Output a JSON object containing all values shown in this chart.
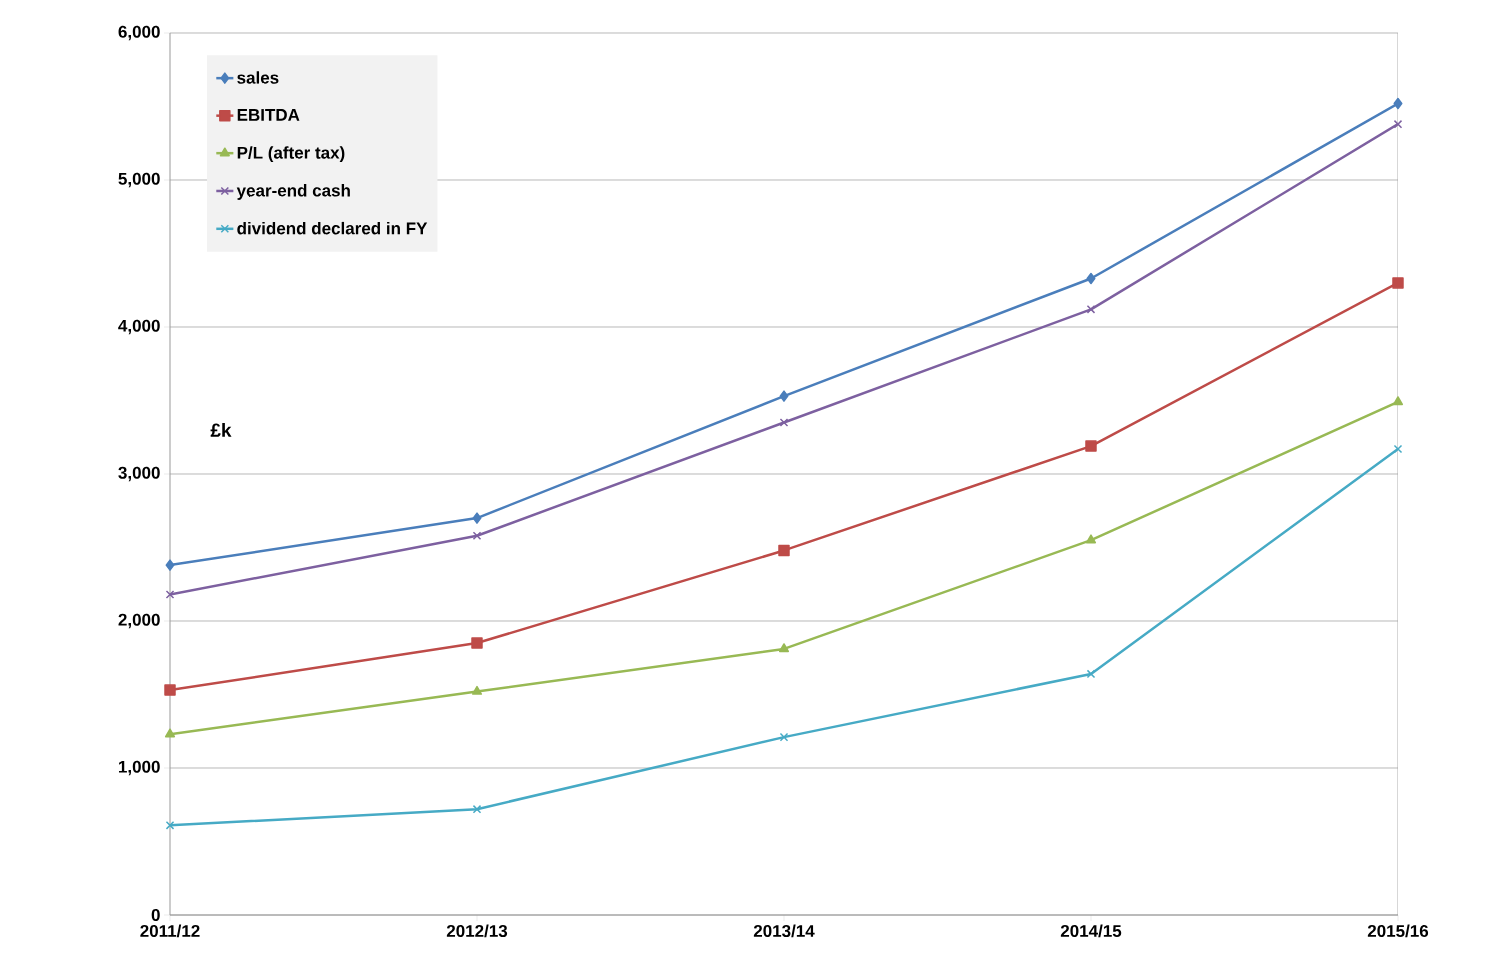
{
  "chart_data": {
    "type": "line",
    "ylabel": "£k",
    "categories": [
      "2011/12",
      "2012/13",
      "2013/14",
      "2014/15",
      "2015/16"
    ],
    "ylim": [
      0,
      6000
    ],
    "yticks": [
      {
        "value": 0,
        "label": "0"
      },
      {
        "value": 1000,
        "label": "1,000"
      },
      {
        "value": 2000,
        "label": "2,000"
      },
      {
        "value": 3000,
        "label": "3,000"
      },
      {
        "value": 4000,
        "label": "4,000"
      },
      {
        "value": 5000,
        "label": "5,000"
      },
      {
        "value": 6000,
        "label": "6,000"
      }
    ],
    "grid": "y",
    "legend": "top left",
    "line_style": "solid",
    "series": [
      {
        "name": "sales",
        "color": "#4a7ebb",
        "marker": "diamond",
        "values": [
          2380,
          2700,
          3530,
          4330,
          5520
        ]
      },
      {
        "name": "EBITDA",
        "color": "#be4b48",
        "marker": "square",
        "values": [
          1530,
          1850,
          2480,
          3190,
          4300
        ]
      },
      {
        "name": "P/L (after tax)",
        "color": "#98b954",
        "marker": "triangle",
        "values": [
          1230,
          1520,
          1810,
          2550,
          3490
        ]
      },
      {
        "name": "year-end cash",
        "color": "#7d60a0",
        "marker": "cross",
        "values": [
          2180,
          2580,
          3350,
          4120,
          5380
        ]
      },
      {
        "name": "dividend declared in FY",
        "color": "#46aac5",
        "marker": "cross",
        "values": [
          610,
          720,
          1210,
          1640,
          3170
        ]
      }
    ]
  }
}
